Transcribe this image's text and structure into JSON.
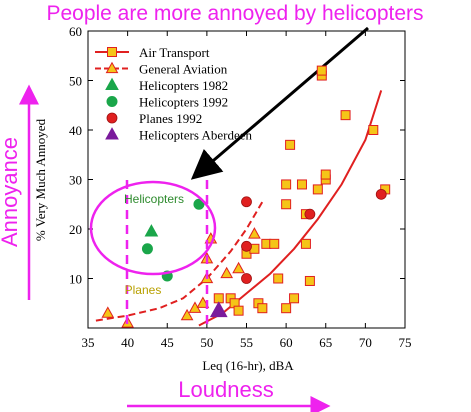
{
  "chart_data": {
    "type": "scatter",
    "title": "People are more annoyed by helicopters",
    "xlabel": "Leq (16-hr), dBA",
    "ylabel": "% Very Much Annoyed",
    "xlim": [
      35,
      75
    ],
    "ylim": [
      0,
      60
    ],
    "xticks": [
      "35",
      "40",
      "45",
      "50",
      "55",
      "60",
      "65",
      "70",
      "75"
    ],
    "yticks": [
      "10",
      "20",
      "30",
      "40",
      "50",
      "60"
    ],
    "legend_position": "top-left",
    "annotations": {
      "x_caption": "Loudness",
      "y_caption": "Annoyance",
      "helicopters_label": "Helicopters",
      "planes_label": "Planes"
    },
    "colors": {
      "magenta": "#ee22ee",
      "air_transport": "#f5c518",
      "red": "#e02020",
      "green": "#1aa64a",
      "purple": "#7a1a9c",
      "helicopters_label": "#2e8b2e",
      "planes_label": "#b8a000"
    },
    "series": [
      {
        "name": "Air Transport",
        "marker": "square",
        "points": [
          [
            51.5,
            6
          ],
          [
            53,
            6
          ],
          [
            53.5,
            5
          ],
          [
            54,
            3.5
          ],
          [
            55,
            15
          ],
          [
            56,
            16
          ],
          [
            56.5,
            5
          ],
          [
            57,
            4
          ],
          [
            57.5,
            17
          ],
          [
            58.5,
            17
          ],
          [
            59,
            10
          ],
          [
            60,
            4
          ],
          [
            60,
            25
          ],
          [
            60,
            29
          ],
          [
            60.5,
            37
          ],
          [
            61,
            6
          ],
          [
            62,
            29
          ],
          [
            62.5,
            23
          ],
          [
            62.5,
            17
          ],
          [
            63,
            9.5
          ],
          [
            64,
            28
          ],
          [
            64.5,
            51
          ],
          [
            64.5,
            52
          ],
          [
            65,
            30
          ],
          [
            65,
            31
          ],
          [
            67.5,
            43
          ],
          [
            71,
            40
          ],
          [
            72.5,
            28
          ]
        ],
        "fit": [
          [
            49,
            0.5
          ],
          [
            52,
            3
          ],
          [
            55,
            7
          ],
          [
            58,
            11
          ],
          [
            61,
            16
          ],
          [
            64,
            22
          ],
          [
            67,
            29
          ],
          [
            70,
            38
          ],
          [
            72,
            48
          ]
        ]
      },
      {
        "name": "General Aviation",
        "marker": "triangle",
        "points": [
          [
            37.5,
            3
          ],
          [
            40,
            1
          ],
          [
            47.5,
            2.5
          ],
          [
            48.5,
            4
          ],
          [
            49.5,
            5
          ],
          [
            50,
            10
          ],
          [
            50,
            14
          ],
          [
            50.5,
            18
          ],
          [
            52.5,
            11
          ],
          [
            54,
            12
          ],
          [
            56,
            19
          ]
        ],
        "fit": [
          [
            36,
            1.5
          ],
          [
            40,
            2.5
          ],
          [
            44,
            4
          ],
          [
            47,
            6
          ],
          [
            50,
            10
          ],
          [
            53,
            15.5
          ],
          [
            55,
            20
          ],
          [
            57,
            25.5
          ]
        ]
      },
      {
        "name": "Helicopters 1982",
        "marker": "triangle",
        "points": [
          [
            43,
            19.5
          ]
        ]
      },
      {
        "name": "Helicopters 1992",
        "marker": "circle",
        "points": [
          [
            42.5,
            16
          ],
          [
            45,
            10.5
          ],
          [
            49,
            25
          ]
        ]
      },
      {
        "name": "Planes 1992",
        "marker": "circle",
        "points": [
          [
            55,
            25.5
          ],
          [
            55,
            16.5
          ],
          [
            55,
            10
          ],
          [
            63,
            23
          ],
          [
            72,
            27
          ]
        ]
      },
      {
        "name": "Helicopters Aberdeen",
        "marker": "triangle",
        "points": [
          [
            51.5,
            3.5
          ]
        ]
      }
    ]
  }
}
